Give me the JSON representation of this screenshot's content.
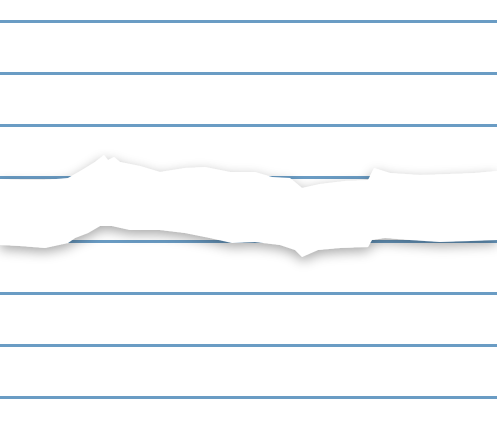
{
  "paper": {
    "background": "#ffffff",
    "rule_color": "#6a9cc4",
    "rule_count": 8
  },
  "tear": {
    "icon": "torn-paper-strip",
    "fill": "#ffffff",
    "shadow": "#cfcfcf"
  }
}
